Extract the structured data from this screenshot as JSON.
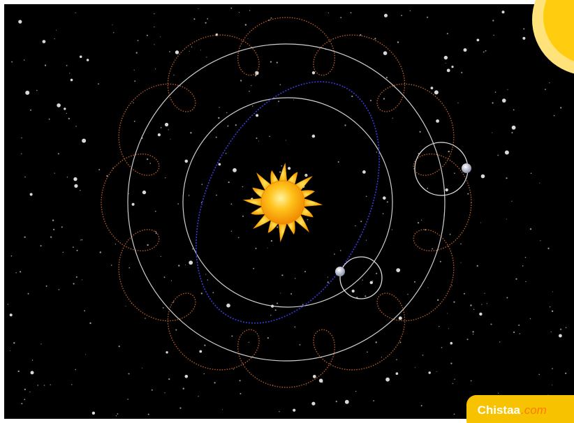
{
  "watermark": {
    "brand": "Chistaa",
    "suffix": ".com"
  }
}
